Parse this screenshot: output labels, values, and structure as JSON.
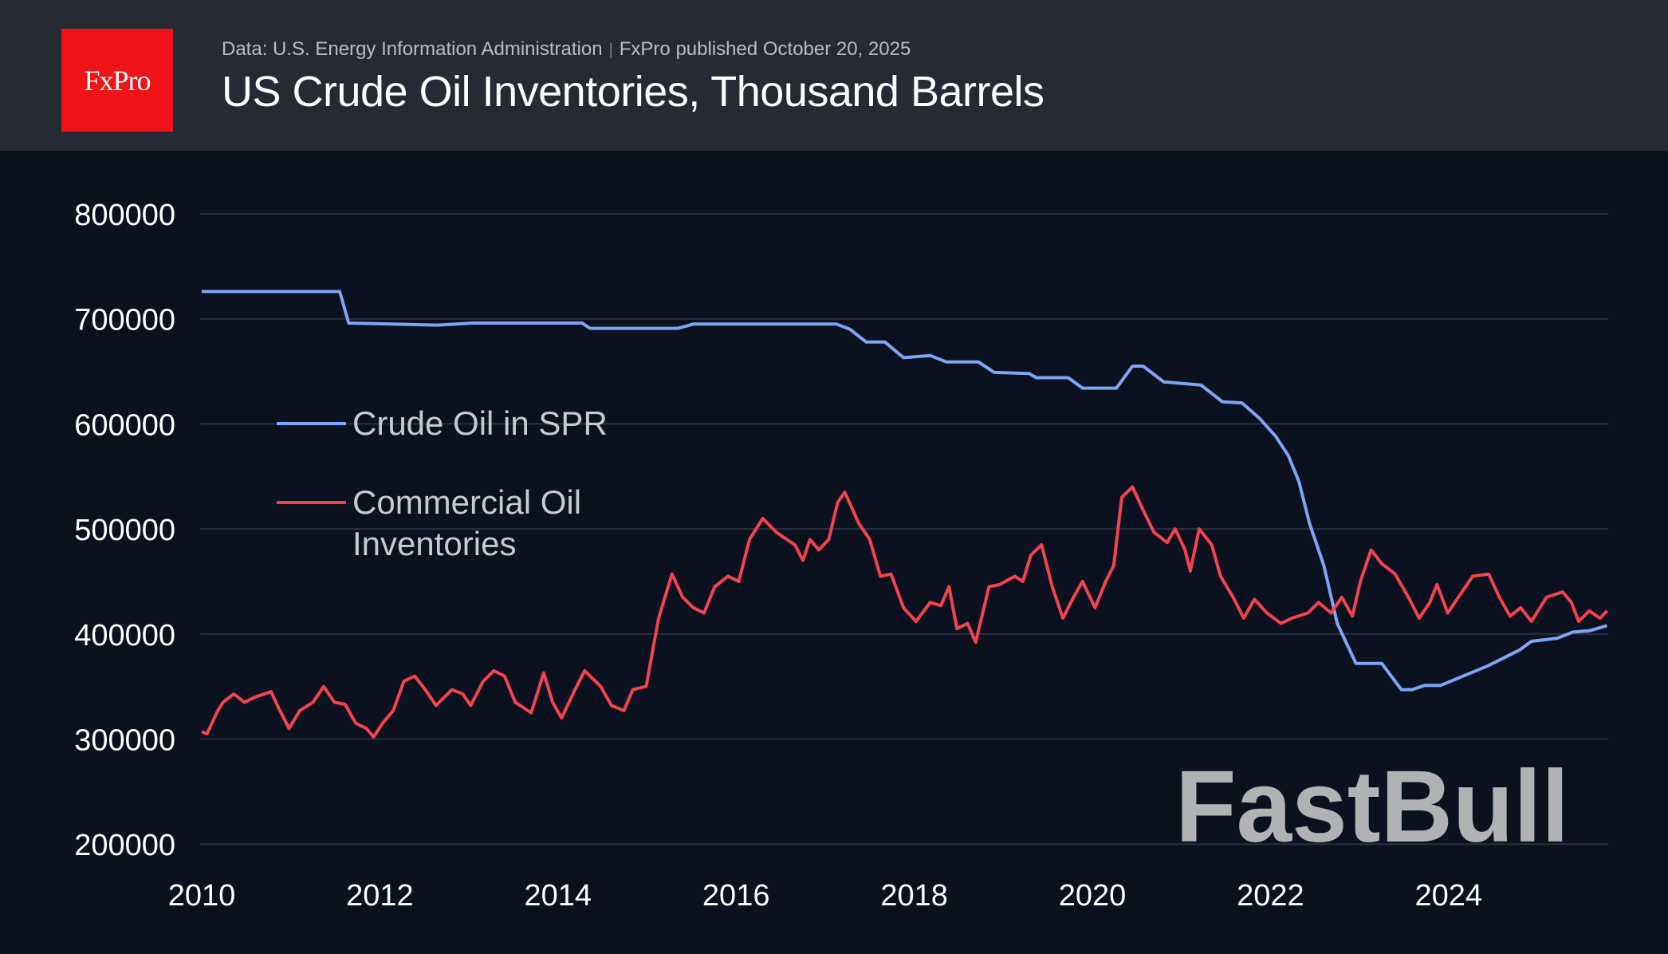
{
  "header": {
    "logo": "FxPro",
    "source": "Data: U.S. Energy Information Administration",
    "separator": "|",
    "published": "FxPro published October 20, 2025",
    "title": "US Crude Oil Inventories, Thousand Barrels"
  },
  "watermark": "FastBull",
  "chart_data": {
    "type": "line",
    "title": "US Crude Oil Inventories, Thousand Barrels",
    "xlim": [
      2010,
      2025.78
    ],
    "ylim": [
      200000,
      800000
    ],
    "xticks": [
      "2010",
      "2012",
      "2014",
      "2016",
      "2018",
      "2020",
      "2022",
      "2024"
    ],
    "yticks": [
      "800000",
      "700000",
      "600000",
      "500000",
      "400000",
      "300000",
      "200000"
    ],
    "grid": "horizontal",
    "legend_placement": "left-middle",
    "series": [
      {
        "name": "Crude Oil in SPR",
        "color": "#7ea6f4",
        "points": [
          [
            2010.0,
            726000
          ],
          [
            2011.55,
            726000
          ],
          [
            2011.65,
            696000
          ],
          [
            2012.65,
            694000
          ],
          [
            2013.04,
            696000
          ],
          [
            2014.27,
            696000
          ],
          [
            2014.36,
            691000
          ],
          [
            2015.35,
            691000
          ],
          [
            2015.52,
            695000
          ],
          [
            2017.13,
            695000
          ],
          [
            2017.28,
            690000
          ],
          [
            2017.46,
            678000
          ],
          [
            2017.67,
            678000
          ],
          [
            2017.88,
            663000
          ],
          [
            2018.18,
            665000
          ],
          [
            2018.36,
            659000
          ],
          [
            2018.72,
            659000
          ],
          [
            2018.9,
            649000
          ],
          [
            2019.29,
            648000
          ],
          [
            2019.37,
            644000
          ],
          [
            2019.73,
            644000
          ],
          [
            2019.89,
            634000
          ],
          [
            2020.27,
            634000
          ],
          [
            2020.45,
            655000
          ],
          [
            2020.57,
            655000
          ],
          [
            2020.8,
            640000
          ],
          [
            2021.22,
            637000
          ],
          [
            2021.46,
            621000
          ],
          [
            2021.68,
            620000
          ],
          [
            2021.88,
            605000
          ],
          [
            2022.06,
            588000
          ],
          [
            2022.2,
            570000
          ],
          [
            2022.32,
            545000
          ],
          [
            2022.44,
            505000
          ],
          [
            2022.6,
            465000
          ],
          [
            2022.75,
            410000
          ],
          [
            2022.96,
            372000
          ],
          [
            2023.25,
            372000
          ],
          [
            2023.47,
            347000
          ],
          [
            2023.59,
            347000
          ],
          [
            2023.73,
            351000
          ],
          [
            2023.91,
            351000
          ],
          [
            2024.45,
            370000
          ],
          [
            2024.8,
            385000
          ],
          [
            2024.93,
            393000
          ],
          [
            2025.22,
            396000
          ],
          [
            2025.4,
            402000
          ],
          [
            2025.58,
            403000
          ],
          [
            2025.78,
            408000
          ]
        ]
      },
      {
        "name": "Commercial Oil Inventories",
        "color": "#f2434f",
        "points": [
          [
            2010.0,
            307000
          ],
          [
            2010.06,
            305000
          ],
          [
            2010.18,
            327000
          ],
          [
            2010.24,
            335000
          ],
          [
            2010.36,
            343000
          ],
          [
            2010.48,
            335000
          ],
          [
            2010.6,
            340000
          ],
          [
            2010.78,
            345000
          ],
          [
            2010.86,
            330000
          ],
          [
            2010.98,
            310000
          ],
          [
            2011.1,
            327000
          ],
          [
            2011.25,
            335000
          ],
          [
            2011.37,
            350000
          ],
          [
            2011.49,
            335000
          ],
          [
            2011.61,
            333000
          ],
          [
            2011.73,
            315000
          ],
          [
            2011.85,
            310000
          ],
          [
            2011.93,
            302000
          ],
          [
            2012.03,
            315000
          ],
          [
            2012.15,
            327000
          ],
          [
            2012.27,
            355000
          ],
          [
            2012.39,
            360000
          ],
          [
            2012.51,
            347000
          ],
          [
            2012.63,
            332000
          ],
          [
            2012.81,
            347000
          ],
          [
            2012.93,
            343000
          ],
          [
            2013.02,
            332000
          ],
          [
            2013.16,
            355000
          ],
          [
            2013.28,
            365000
          ],
          [
            2013.4,
            360000
          ],
          [
            2013.52,
            335000
          ],
          [
            2013.7,
            325000
          ],
          [
            2013.84,
            363000
          ],
          [
            2013.94,
            335000
          ],
          [
            2014.04,
            320000
          ],
          [
            2014.18,
            345000
          ],
          [
            2014.3,
            365000
          ],
          [
            2014.48,
            350000
          ],
          [
            2014.6,
            332000
          ],
          [
            2014.74,
            327000
          ],
          [
            2014.84,
            347000
          ],
          [
            2014.99,
            350000
          ],
          [
            2015.13,
            415000
          ],
          [
            2015.28,
            457000
          ],
          [
            2015.4,
            435000
          ],
          [
            2015.52,
            425000
          ],
          [
            2015.64,
            420000
          ],
          [
            2015.76,
            445000
          ],
          [
            2015.91,
            455000
          ],
          [
            2016.03,
            450000
          ],
          [
            2016.15,
            490000
          ],
          [
            2016.3,
            510000
          ],
          [
            2016.45,
            497000
          ],
          [
            2016.57,
            490000
          ],
          [
            2016.66,
            485000
          ],
          [
            2016.75,
            470000
          ],
          [
            2016.83,
            490000
          ],
          [
            2016.93,
            480000
          ],
          [
            2017.04,
            490000
          ],
          [
            2017.14,
            525000
          ],
          [
            2017.22,
            535000
          ],
          [
            2017.38,
            505000
          ],
          [
            2017.5,
            490000
          ],
          [
            2017.62,
            455000
          ],
          [
            2017.74,
            457000
          ],
          [
            2017.88,
            425000
          ],
          [
            2018.02,
            412000
          ],
          [
            2018.18,
            430000
          ],
          [
            2018.3,
            427000
          ],
          [
            2018.39,
            445000
          ],
          [
            2018.48,
            405000
          ],
          [
            2018.6,
            410000
          ],
          [
            2018.69,
            392000
          ],
          [
            2018.84,
            445000
          ],
          [
            2018.96,
            447000
          ],
          [
            2019.13,
            455000
          ],
          [
            2019.22,
            450000
          ],
          [
            2019.31,
            475000
          ],
          [
            2019.43,
            485000
          ],
          [
            2019.55,
            445000
          ],
          [
            2019.67,
            415000
          ],
          [
            2019.79,
            435000
          ],
          [
            2019.89,
            450000
          ],
          [
            2020.03,
            425000
          ],
          [
            2020.15,
            450000
          ],
          [
            2020.24,
            465000
          ],
          [
            2020.33,
            530000
          ],
          [
            2020.45,
            540000
          ],
          [
            2020.57,
            518000
          ],
          [
            2020.69,
            497000
          ],
          [
            2020.84,
            487000
          ],
          [
            2020.93,
            500000
          ],
          [
            2021.04,
            480000
          ],
          [
            2021.1,
            460000
          ],
          [
            2021.2,
            500000
          ],
          [
            2021.34,
            485000
          ],
          [
            2021.44,
            455000
          ],
          [
            2021.58,
            435000
          ],
          [
            2021.7,
            415000
          ],
          [
            2021.82,
            433000
          ],
          [
            2021.96,
            420000
          ],
          [
            2022.12,
            410000
          ],
          [
            2022.24,
            415000
          ],
          [
            2022.42,
            420000
          ],
          [
            2022.54,
            430000
          ],
          [
            2022.68,
            420000
          ],
          [
            2022.8,
            435000
          ],
          [
            2022.92,
            417000
          ],
          [
            2023.01,
            450000
          ],
          [
            2023.13,
            480000
          ],
          [
            2023.25,
            467000
          ],
          [
            2023.4,
            457000
          ],
          [
            2023.55,
            435000
          ],
          [
            2023.67,
            415000
          ],
          [
            2023.79,
            430000
          ],
          [
            2023.87,
            447000
          ],
          [
            2023.99,
            420000
          ],
          [
            2024.15,
            440000
          ],
          [
            2024.27,
            455000
          ],
          [
            2024.45,
            457000
          ],
          [
            2024.57,
            435000
          ],
          [
            2024.69,
            417000
          ],
          [
            2024.81,
            425000
          ],
          [
            2024.93,
            412000
          ],
          [
            2025.1,
            435000
          ],
          [
            2025.28,
            440000
          ],
          [
            2025.38,
            430000
          ],
          [
            2025.46,
            412000
          ],
          [
            2025.58,
            422000
          ],
          [
            2025.7,
            415000
          ],
          [
            2025.78,
            422000
          ]
        ]
      }
    ]
  }
}
